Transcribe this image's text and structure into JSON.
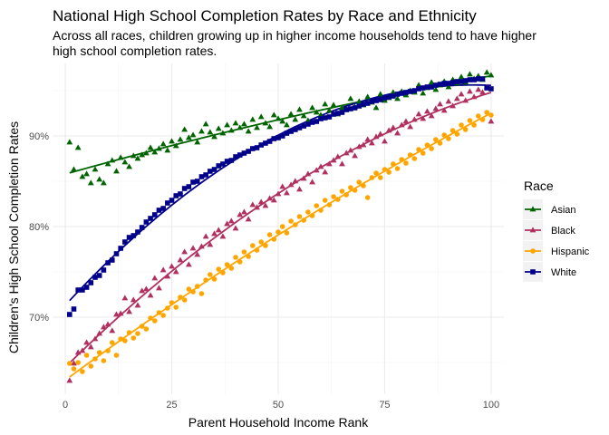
{
  "chart_data": {
    "type": "scatter",
    "title": "National High School Completion Rates by Race and Ethnicity",
    "subtitle": "Across all races, children growing up in higher income households tend to have higher high school completion rates.",
    "xlabel": "Parent Household Income Rank",
    "ylabel": "Children's High School Completion Rates",
    "xlim": [
      -3,
      103
    ],
    "ylim": [
      61.5,
      98
    ],
    "x_ticks": [
      0,
      25,
      50,
      75,
      100
    ],
    "x_tick_labels": [
      "0",
      "25",
      "50",
      "75",
      "100"
    ],
    "y_ticks": [
      70,
      80,
      90
    ],
    "y_tick_labels": [
      "70%",
      "80%",
      "90%"
    ],
    "grid": true,
    "legend": {
      "title": "Race",
      "position": "right"
    },
    "series": [
      {
        "name": "Asian",
        "color": "#006400",
        "marker": "triangle",
        "x": [
          1,
          2,
          3,
          4,
          5,
          6,
          7,
          8,
          9,
          10,
          11,
          12,
          13,
          14,
          15,
          16,
          17,
          18,
          19,
          20,
          21,
          22,
          23,
          24,
          25,
          26,
          27,
          28,
          29,
          30,
          31,
          32,
          33,
          34,
          35,
          36,
          37,
          38,
          39,
          40,
          41,
          42,
          43,
          44,
          45,
          46,
          47,
          48,
          49,
          50,
          51,
          52,
          53,
          54,
          55,
          56,
          57,
          58,
          59,
          60,
          61,
          62,
          63,
          64,
          65,
          66,
          67,
          68,
          69,
          70,
          71,
          72,
          73,
          74,
          75,
          76,
          77,
          78,
          79,
          80,
          81,
          82,
          83,
          84,
          85,
          86,
          87,
          88,
          89,
          90,
          91,
          92,
          93,
          94,
          95,
          96,
          97,
          98,
          99,
          100
        ],
        "values": [
          89.3,
          86.3,
          88.7,
          85.5,
          85.8,
          84.8,
          86.3,
          85.2,
          84.8,
          86.9,
          87.3,
          86.1,
          87.6,
          87.1,
          86.6,
          87.8,
          87.5,
          87.9,
          88.1,
          88.7,
          88.2,
          88.6,
          89.1,
          88.4,
          89.4,
          88.9,
          89.6,
          90.7,
          89.8,
          90.1,
          89.3,
          90.5,
          91.3,
          90.4,
          89.9,
          90.8,
          90.3,
          91.2,
          90.6,
          91.4,
          90.9,
          91.3,
          90.5,
          91.8,
          90.9,
          92.1,
          91.4,
          91.0,
          92.3,
          91.9,
          91.6,
          91.2,
          92.4,
          91.8,
          92.9,
          92.2,
          91.7,
          93.1,
          92.6,
          92.3,
          93.5,
          92.8,
          93.4,
          92.4,
          93.1,
          92.9,
          94.1,
          93.2,
          93.8,
          93.4,
          94.3,
          93.7,
          93.1,
          94.6,
          93.9,
          94.2,
          94.8,
          94.1,
          94.9,
          94.5,
          95.0,
          94.8,
          95.6,
          94.7,
          95.3,
          95.9,
          95.1,
          95.6,
          96.0,
          95.4,
          96.2,
          95.8,
          96.5,
          95.9,
          96.8,
          96.3,
          96.6,
          96.2,
          97.0,
          96.7
        ]
      },
      {
        "name": "Black",
        "color": "#B03060",
        "marker": "triangle",
        "x": [
          1,
          2,
          3,
          4,
          5,
          6,
          7,
          8,
          9,
          10,
          11,
          12,
          13,
          14,
          15,
          16,
          17,
          18,
          19,
          20,
          21,
          22,
          23,
          24,
          25,
          26,
          27,
          28,
          29,
          30,
          31,
          32,
          33,
          34,
          35,
          36,
          37,
          38,
          39,
          40,
          41,
          42,
          43,
          44,
          45,
          46,
          47,
          48,
          49,
          50,
          51,
          52,
          53,
          54,
          55,
          56,
          57,
          58,
          59,
          60,
          61,
          62,
          63,
          64,
          65,
          66,
          67,
          68,
          69,
          70,
          71,
          72,
          73,
          74,
          75,
          76,
          77,
          78,
          79,
          80,
          81,
          82,
          83,
          84,
          85,
          86,
          87,
          88,
          89,
          90,
          91,
          92,
          93,
          94,
          95,
          96,
          97,
          98,
          99,
          100
        ],
        "values": [
          63.0,
          64.9,
          66.1,
          66.3,
          67.2,
          66.7,
          67.6,
          68.2,
          68.9,
          69.2,
          68.5,
          70.3,
          70.4,
          72.1,
          70.6,
          71.9,
          71.3,
          72.9,
          73.1,
          72.4,
          74.3,
          73.2,
          75.2,
          74.5,
          75.6,
          75.0,
          76.3,
          77.2,
          75.8,
          77.6,
          76.9,
          77.8,
          78.9,
          78.0,
          79.2,
          79.6,
          78.9,
          80.3,
          80.6,
          79.8,
          81.3,
          81.6,
          80.8,
          82.4,
          82.1,
          82.7,
          82.3,
          83.1,
          82.9,
          83.6,
          84.4,
          83.7,
          84.6,
          85.0,
          84.1,
          85.3,
          85.8,
          84.9,
          86.2,
          86.6,
          86.0,
          86.9,
          87.3,
          87.7,
          86.9,
          88.1,
          88.4,
          87.8,
          88.8,
          89.0,
          89.6,
          89.2,
          89.9,
          90.2,
          89.4,
          90.6,
          90.9,
          90.3,
          91.2,
          91.6,
          91.0,
          91.8,
          92.4,
          91.9,
          92.7,
          92.2,
          93.0,
          93.5,
          92.8,
          93.8,
          93.3,
          94.1,
          94.6,
          93.9,
          94.9,
          94.3,
          95.1,
          94.8,
          95.4,
          91.6
        ]
      },
      {
        "name": "Hispanic",
        "color": "#FFA500",
        "marker": "circle",
        "x": [
          1,
          2,
          3,
          4,
          5,
          6,
          7,
          8,
          9,
          10,
          11,
          12,
          13,
          14,
          15,
          16,
          17,
          18,
          19,
          20,
          21,
          22,
          23,
          24,
          25,
          26,
          27,
          28,
          29,
          30,
          31,
          32,
          33,
          34,
          35,
          36,
          37,
          38,
          39,
          40,
          41,
          42,
          43,
          44,
          45,
          46,
          47,
          48,
          49,
          50,
          51,
          52,
          53,
          54,
          55,
          56,
          57,
          58,
          59,
          60,
          61,
          62,
          63,
          64,
          65,
          66,
          67,
          68,
          69,
          70,
          71,
          72,
          73,
          74,
          75,
          76,
          77,
          78,
          79,
          80,
          81,
          82,
          83,
          84,
          85,
          86,
          87,
          88,
          89,
          90,
          91,
          92,
          93,
          94,
          95,
          96,
          97,
          98,
          99,
          100
        ],
        "values": [
          64.9,
          64.3,
          65.0,
          64.0,
          65.8,
          64.6,
          65.4,
          66.1,
          65.2,
          66.3,
          67.2,
          65.8,
          67.6,
          67.4,
          68.3,
          67.7,
          68.2,
          69.0,
          68.7,
          69.9,
          69.6,
          70.5,
          70.2,
          71.0,
          71.6,
          71.1,
          72.2,
          71.9,
          73.1,
          72.8,
          73.4,
          72.6,
          74.1,
          74.7,
          74.2,
          75.3,
          74.9,
          75.8,
          75.4,
          76.6,
          76.1,
          77.2,
          76.7,
          77.9,
          77.4,
          78.3,
          77.9,
          79.1,
          78.6,
          79.4,
          80.0,
          79.3,
          80.6,
          80.2,
          81.1,
          80.7,
          81.6,
          81.2,
          82.3,
          81.8,
          82.9,
          82.4,
          83.3,
          83.0,
          83.9,
          83.5,
          84.3,
          84.0,
          84.9,
          84.5,
          83.2,
          85.4,
          85.9,
          85.4,
          86.3,
          86.0,
          86.9,
          86.4,
          87.4,
          87.0,
          87.9,
          87.5,
          88.5,
          88.1,
          89.0,
          88.6,
          89.6,
          89.2,
          90.1,
          89.7,
          90.6,
          90.2,
          91.2,
          90.7,
          91.7,
          91.2,
          92.2,
          91.8,
          92.6,
          92.3
        ]
      },
      {
        "name": "White",
        "color": "#00008B",
        "marker": "square",
        "x": [
          1,
          2,
          3,
          4,
          5,
          6,
          7,
          8,
          9,
          10,
          11,
          12,
          13,
          14,
          15,
          16,
          17,
          18,
          19,
          20,
          21,
          22,
          23,
          24,
          25,
          26,
          27,
          28,
          29,
          30,
          31,
          32,
          33,
          34,
          35,
          36,
          37,
          38,
          39,
          40,
          41,
          42,
          43,
          44,
          45,
          46,
          47,
          48,
          49,
          50,
          51,
          52,
          53,
          54,
          55,
          56,
          57,
          58,
          59,
          60,
          61,
          62,
          63,
          64,
          65,
          66,
          67,
          68,
          69,
          70,
          71,
          72,
          73,
          74,
          75,
          76,
          77,
          78,
          79,
          80,
          81,
          82,
          83,
          84,
          85,
          86,
          87,
          88,
          89,
          90,
          91,
          92,
          93,
          94,
          95,
          96,
          97,
          98,
          99,
          100
        ],
        "values": [
          70.3,
          70.9,
          73.0,
          73.0,
          73.3,
          73.8,
          74.4,
          74.6,
          75.2,
          76.0,
          76.3,
          77.0,
          77.6,
          78.3,
          78.8,
          79.0,
          79.4,
          79.9,
          80.5,
          80.9,
          81.3,
          81.8,
          82.0,
          82.6,
          82.9,
          83.4,
          83.6,
          84.2,
          84.4,
          84.9,
          85.0,
          85.5,
          85.7,
          86.1,
          86.3,
          86.7,
          86.9,
          87.2,
          87.3,
          87.7,
          87.9,
          88.1,
          88.3,
          88.6,
          88.7,
          89.0,
          89.2,
          89.4,
          89.7,
          89.8,
          90.0,
          90.3,
          90.5,
          90.7,
          90.9,
          91.1,
          91.3,
          91.5,
          91.6,
          91.9,
          92.0,
          92.1,
          92.4,
          92.5,
          92.6,
          92.9,
          93.0,
          93.1,
          93.3,
          93.5,
          93.6,
          93.8,
          93.9,
          94.0,
          94.2,
          94.3,
          94.4,
          94.6,
          94.7,
          94.8,
          94.9,
          95.0,
          95.2,
          95.3,
          95.4,
          95.4,
          95.6,
          95.7,
          95.8,
          95.8,
          95.9,
          96.0,
          96.0,
          96.1,
          96.2,
          96.2,
          96.3,
          96.3,
          95.3,
          95.2
        ]
      }
    ]
  }
}
